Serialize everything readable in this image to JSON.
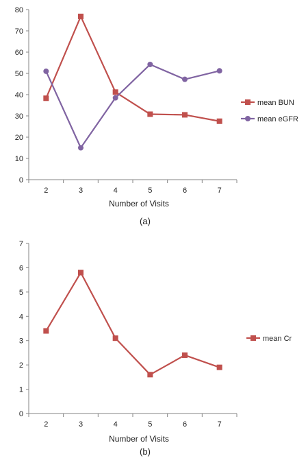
{
  "chart_data": [
    {
      "type": "line",
      "caption": "(a)",
      "x": [
        2,
        3,
        4,
        5,
        6,
        7
      ],
      "xlabel": "Number of Visits",
      "ylabel": "",
      "ylim": [
        0,
        80
      ],
      "yticks": [
        0,
        10,
        20,
        30,
        40,
        50,
        60,
        70,
        80
      ],
      "grid": false,
      "legend": "right",
      "series": [
        {
          "name": "mean BUN",
          "marker": "square",
          "color": "#c0504d",
          "values": [
            38.3,
            76.8,
            41.2,
            30.8,
            30.5,
            27.5
          ]
        },
        {
          "name": "mean eGFR",
          "marker": "circle",
          "color": "#8064a2",
          "values": [
            51.0,
            15.0,
            38.5,
            54.2,
            47.2,
            51.2
          ]
        }
      ]
    },
    {
      "type": "line",
      "caption": "(b)",
      "x": [
        2,
        3,
        4,
        5,
        6,
        7
      ],
      "xlabel": "Number of Visits",
      "ylabel": "",
      "ylim": [
        0,
        7
      ],
      "yticks": [
        0,
        1,
        2,
        3,
        4,
        5,
        6,
        7
      ],
      "grid": false,
      "legend": "right",
      "series": [
        {
          "name": "mean Cr",
          "marker": "square",
          "color": "#c0504d",
          "values": [
            3.4,
            5.8,
            3.1,
            1.6,
            2.4,
            1.9
          ]
        }
      ]
    }
  ]
}
